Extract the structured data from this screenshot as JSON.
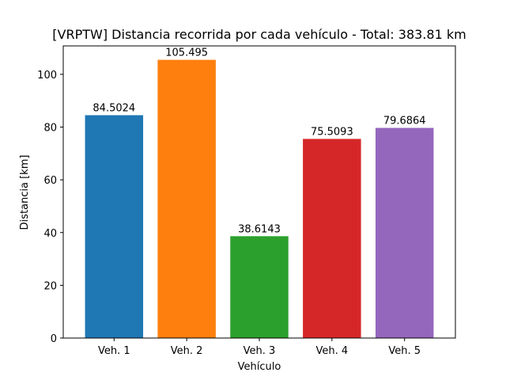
{
  "chart_data": {
    "type": "bar",
    "title": "[VRPTW] Distancia recorrida por cada vehículo - Total: 383.81 km",
    "xlabel": "Vehículo",
    "ylabel": "Distancia [km]",
    "categories": [
      "Veh. 1",
      "Veh. 2",
      "Veh. 3",
      "Veh. 4",
      "Veh. 5"
    ],
    "values": [
      84.5024,
      105.495,
      38.6143,
      75.5093,
      79.6864
    ],
    "value_labels": [
      "84.5024",
      "105.495",
      "38.6143",
      "75.5093",
      "79.6864"
    ],
    "colors": [
      "#1f77b4",
      "#ff7f0e",
      "#2ca02c",
      "#d62728",
      "#9467bd"
    ],
    "ylim": [
      0,
      110.77
    ],
    "yticks": [
      0,
      20,
      40,
      60,
      80,
      100
    ],
    "grid": false,
    "legend": "none"
  }
}
